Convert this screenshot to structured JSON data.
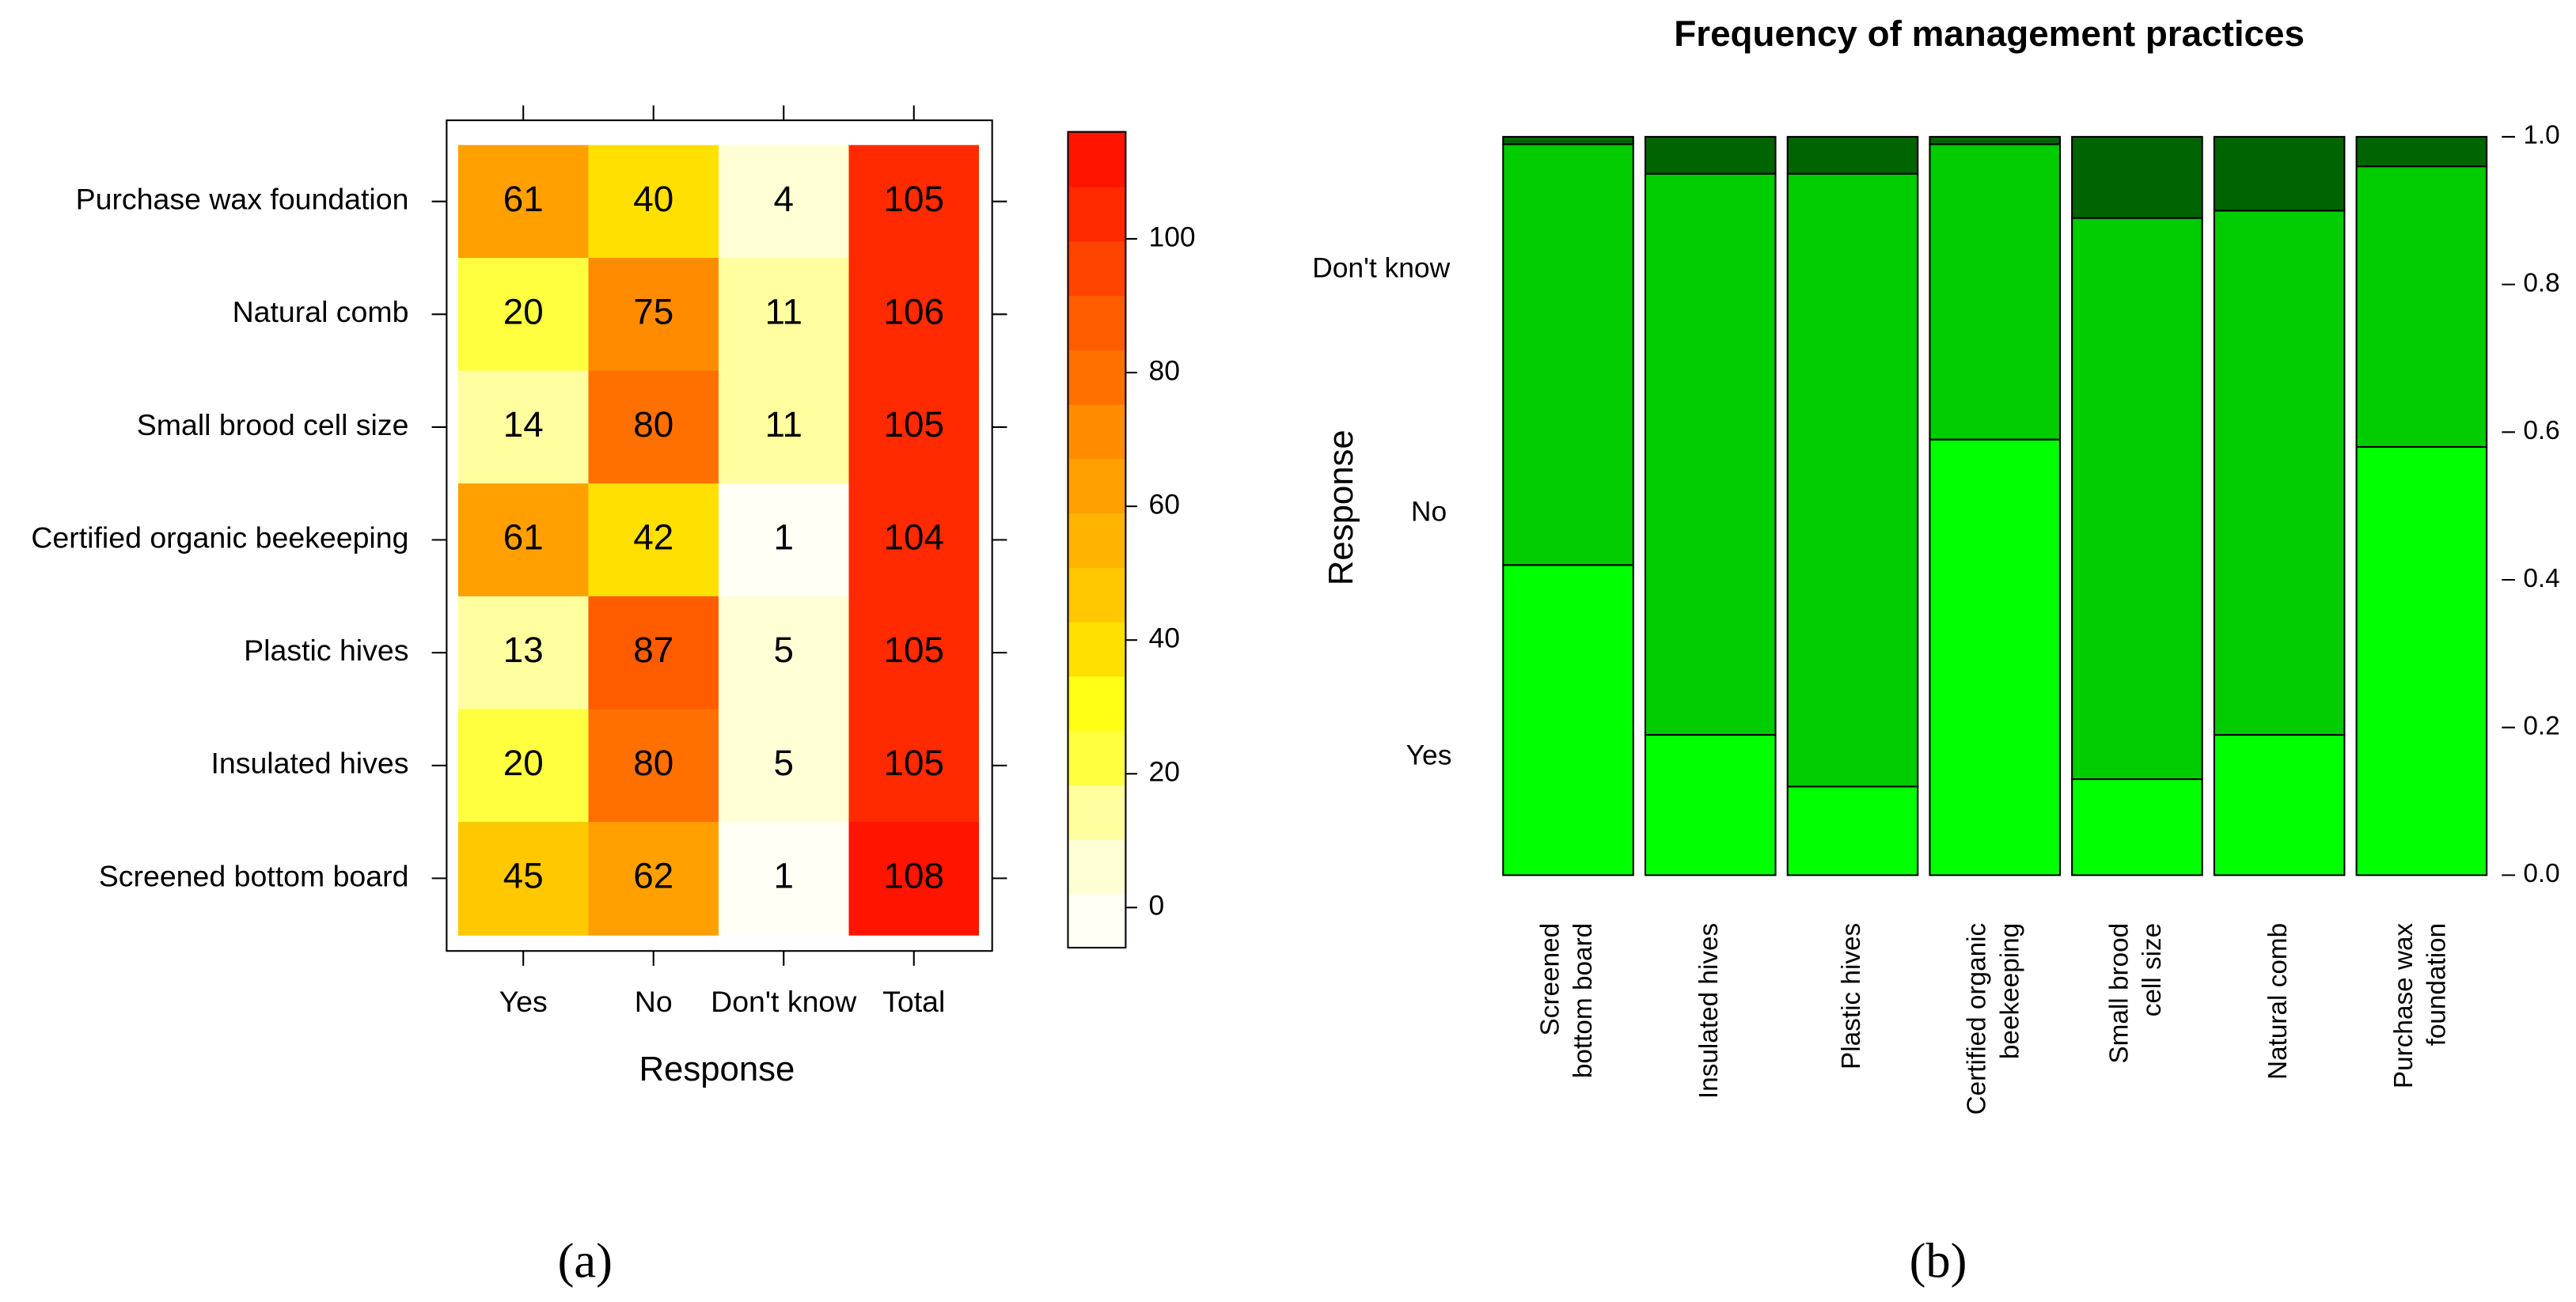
{
  "chart_data": [
    {
      "type": "heatmap",
      "rows": [
        "Purchase wax foundation",
        "Natural comb",
        "Small brood cell size",
        "Certified organic beekeeping",
        "Plastic hives",
        "Insulated hives",
        "Screened bottom board"
      ],
      "columns": [
        "Yes",
        "No",
        "Don't know",
        "Total"
      ],
      "values": [
        [
          61,
          40,
          4,
          105
        ],
        [
          20,
          75,
          11,
          106
        ],
        [
          14,
          80,
          11,
          105
        ],
        [
          61,
          42,
          1,
          104
        ],
        [
          13,
          87,
          5,
          105
        ],
        [
          20,
          80,
          5,
          105
        ],
        [
          45,
          62,
          1,
          108
        ]
      ],
      "xlabel": "Response",
      "zlim": [
        -6,
        116
      ],
      "zticks": [
        0,
        20,
        40,
        60,
        80,
        100
      ],
      "colors": [
        "#fffff6",
        "#ffffd5",
        "#ffff9f",
        "#ffff40",
        "#ffff15",
        "#ffe000",
        "#ffc800",
        "#ffb400",
        "#ffa000",
        "#ff8c00",
        "#ff7000",
        "#ff5c00",
        "#ff4400",
        "#ff2a00",
        "#ff1400"
      ],
      "panel_label": "(a)"
    },
    {
      "type": "stacked_bar",
      "title": "Frequency of management practices",
      "categories": [
        [
          "Screened",
          "bottom board"
        ],
        [
          "Insulated hives"
        ],
        [
          "Plastic hives"
        ],
        [
          "Certified organic",
          "beekeeping"
        ],
        [
          "Small brood",
          "cell size"
        ],
        [
          "Natural comb"
        ],
        [
          "Purchase wax",
          "foundation"
        ]
      ],
      "series": [
        {
          "name": "Yes",
          "color": "#00ff00",
          "values": [
            0.42,
            0.19,
            0.12,
            0.59,
            0.13,
            0.19,
            0.58
          ]
        },
        {
          "name": "No",
          "color": "#00cc00",
          "values": [
            0.57,
            0.76,
            0.83,
            0.4,
            0.76,
            0.71,
            0.38
          ]
        },
        {
          "name": "Don't know",
          "color": "#006400",
          "values": [
            0.01,
            0.05,
            0.05,
            0.01,
            0.11,
            0.1,
            0.04
          ]
        }
      ],
      "ylabel": "Response",
      "ylim": [
        0,
        1
      ],
      "yticks": [
        {
          "value": 0,
          "label": "0.0"
        },
        {
          "value": 0.2,
          "label": "0.2"
        },
        {
          "value": 0.4,
          "label": "0.4"
        },
        {
          "value": 0.6,
          "label": "0.6"
        },
        {
          "value": 0.8,
          "label": "0.8"
        },
        {
          "value": 1,
          "label": "1.0"
        }
      ],
      "panel_label": "(b)"
    }
  ]
}
